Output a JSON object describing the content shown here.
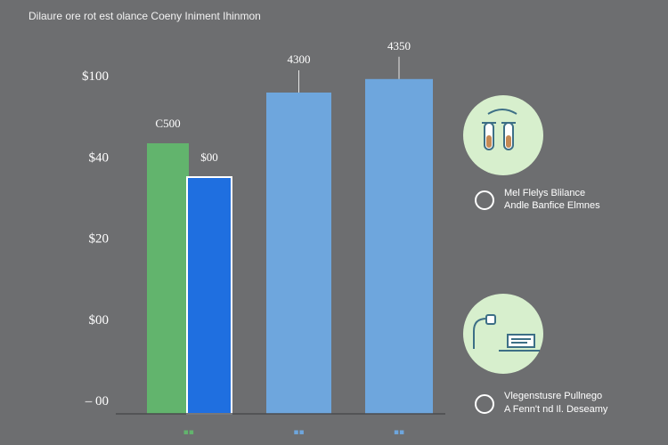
{
  "title": "Dilaure ore rot est olance Coeny Iniment Ihinmon",
  "colors": {
    "background": "#6d6e70",
    "green": "#62b46d",
    "blue": "#1f6fe0",
    "light_blue": "#6ea6dd",
    "legend_circle": "#d7efcd",
    "icon_stroke": "#3d6f86"
  },
  "chart_data": {
    "type": "bar",
    "ytick_labels": [
      "– 00",
      "$00",
      "$20",
      "$40",
      "$100"
    ],
    "ylim": [
      0,
      100
    ],
    "groups": [
      {
        "xtick_label": "▪▪",
        "bars": [
          {
            "value": 80,
            "color_key": "green",
            "label": "C500"
          },
          {
            "value": 70,
            "color_key": "blue",
            "label": "$00"
          }
        ]
      },
      {
        "xtick_label": "▪▪",
        "bars": [
          {
            "value": 95,
            "color_key": "light_blue",
            "label": "4300"
          }
        ]
      },
      {
        "xtick_label": "▪▪",
        "bars": [
          {
            "value": 99,
            "color_key": "light_blue",
            "label": "4350"
          }
        ]
      }
    ],
    "grid": false
  },
  "legend": [
    {
      "icon": "test-tubes-icon",
      "line1": "Mel Flelys Blilance",
      "line2": "Andle Banfice Elmnes"
    },
    {
      "icon": "laptop-icon",
      "line1": "Vlegenstusre Pullnego",
      "line2": "A Fenn't nd Il. Deseamy"
    }
  ]
}
